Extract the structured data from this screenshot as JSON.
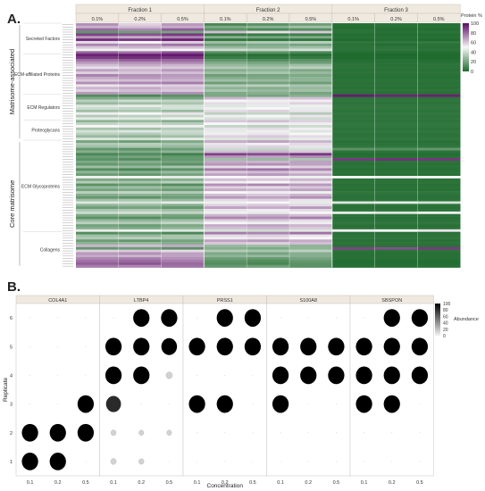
{
  "panel_labels": [
    "A.",
    "B."
  ],
  "chart_data": [
    {
      "type": "heatmap",
      "panel": "A.",
      "fractions": [
        "Fraction 1",
        "Fraction 2",
        "Fraction 3"
      ],
      "columns": [
        "0.1%",
        "0.2%",
        "0.5%",
        "0.1%",
        "0.2%",
        "0.5%",
        "0.1%",
        "0.2%",
        "0.5%"
      ],
      "outer_groups": [
        "Matrisome-associated",
        "Core matrisome"
      ],
      "category_labels": [
        "Secreted Factors",
        "ECM-affiliated Proteins",
        "ECM Regulators",
        "Proteoglycans",
        "ECM Glycoproteins",
        "Collagens"
      ],
      "row_count": 96,
      "colorbar": {
        "title": "Protein %",
        "ticks": [
          100,
          80,
          60,
          40,
          20,
          0
        ],
        "range": [
          0,
          100
        ],
        "colors": [
          "#1f6b2e",
          "#f7f7f7",
          "#5a0a64"
        ]
      },
      "values": [
        [
          72,
          58,
          70,
          10,
          14,
          18,
          2,
          3,
          2
        ],
        [
          65,
          62,
          66,
          22,
          25,
          30,
          1,
          2,
          2
        ],
        [
          80,
          74,
          83,
          14,
          10,
          12,
          2,
          1,
          1
        ],
        [
          15,
          18,
          20,
          62,
          55,
          60,
          3,
          2,
          3
        ],
        [
          88,
          85,
          90,
          5,
          6,
          7,
          1,
          1,
          1
        ],
        [
          70,
          66,
          74,
          24,
          20,
          22,
          2,
          2,
          2
        ],
        [
          92,
          90,
          95,
          4,
          4,
          4,
          0,
          1,
          0
        ],
        [
          55,
          50,
          58,
          30,
          34,
          36,
          4,
          4,
          5
        ],
        [
          74,
          70,
          78,
          18,
          22,
          20,
          2,
          1,
          2
        ],
        [
          60,
          64,
          62,
          28,
          26,
          30,
          3,
          3,
          2
        ],
        [
          48,
          52,
          50,
          40,
          38,
          42,
          3,
          4,
          3
        ],
        [
          82,
          78,
          85,
          12,
          14,
          10,
          1,
          1,
          1
        ],
        [
          95,
          96,
          97,
          3,
          2,
          2,
          0,
          0,
          0
        ],
        [
          90,
          93,
          92,
          6,
          4,
          5,
          0,
          0,
          0
        ],
        [
          78,
          82,
          80,
          15,
          12,
          14,
          1,
          2,
          1
        ],
        [
          70,
          72,
          74,
          22,
          20,
          18,
          2,
          2,
          2
        ],
        [
          62,
          66,
          64,
          28,
          26,
          30,
          3,
          2,
          3
        ],
        [
          55,
          58,
          60,
          34,
          32,
          36,
          3,
          3,
          3
        ],
        [
          68,
          64,
          70,
          24,
          26,
          22,
          2,
          2,
          2
        ],
        [
          58,
          60,
          62,
          30,
          32,
          28,
          3,
          3,
          3
        ],
        [
          75,
          72,
          70,
          18,
          20,
          22,
          2,
          2,
          2
        ],
        [
          66,
          70,
          68,
          24,
          22,
          26,
          2,
          2,
          2
        ],
        [
          60,
          62,
          64,
          30,
          28,
          26,
          3,
          3,
          3
        ],
        [
          72,
          74,
          76,
          18,
          20,
          18,
          2,
          2,
          2
        ],
        [
          54,
          56,
          58,
          34,
          36,
          32,
          3,
          3,
          3
        ],
        [
          64,
          66,
          62,
          26,
          24,
          28,
          2,
          2,
          2
        ],
        [
          58,
          62,
          60,
          32,
          28,
          30,
          3,
          3,
          3
        ],
        [
          70,
          68,
          72,
          22,
          24,
          20,
          2,
          2,
          2
        ],
        [
          12,
          10,
          14,
          22,
          20,
          24,
          96,
          94,
          95
        ],
        [
          22,
          24,
          20,
          64,
          60,
          62,
          3,
          3,
          3
        ],
        [
          36,
          40,
          38,
          50,
          48,
          52,
          4,
          4,
          4
        ],
        [
          28,
          30,
          32,
          56,
          54,
          58,
          3,
          3,
          3
        ],
        [
          44,
          46,
          42,
          44,
          46,
          48,
          4,
          4,
          4
        ],
        [
          40,
          38,
          42,
          48,
          50,
          46,
          4,
          4,
          4
        ],
        [
          30,
          32,
          28,
          56,
          58,
          54,
          3,
          3,
          3
        ],
        [
          52,
          50,
          54,
          36,
          38,
          34,
          4,
          4,
          4
        ],
        [
          34,
          36,
          38,
          52,
          50,
          54,
          3,
          3,
          3
        ],
        [
          46,
          44,
          48,
          42,
          44,
          40,
          4,
          4,
          4
        ],
        [
          26,
          28,
          24,
          60,
          62,
          58,
          3,
          3,
          3
        ],
        [
          38,
          40,
          36,
          50,
          48,
          52,
          4,
          4,
          4
        ],
        [
          50,
          52,
          48,
          38,
          36,
          40,
          4,
          4,
          4
        ],
        [
          32,
          30,
          34,
          54,
          56,
          52,
          3,
          3,
          3
        ],
        [
          42,
          44,
          40,
          46,
          48,
          44,
          4,
          4,
          4
        ],
        [
          36,
          34,
          38,
          52,
          54,
          50,
          3,
          3,
          3
        ],
        [
          28,
          26,
          30,
          58,
          60,
          56,
          3,
          3,
          3
        ],
        [
          44,
          42,
          46,
          44,
          42,
          46,
          4,
          4,
          4
        ],
        [
          20,
          18,
          22,
          66,
          68,
          64,
          2,
          2,
          2
        ],
        [
          34,
          36,
          32,
          54,
          52,
          56,
          3,
          3,
          3
        ],
        [
          30,
          32,
          28,
          56,
          58,
          54,
          4,
          4,
          4
        ],
        [
          16,
          14,
          18,
          40,
          38,
          42,
          14,
          12,
          16
        ],
        [
          24,
          22,
          26,
          62,
          64,
          60,
          3,
          3,
          3
        ],
        [
          10,
          12,
          8,
          88,
          86,
          90,
          1,
          1,
          1
        ],
        [
          18,
          20,
          16,
          70,
          68,
          72,
          2,
          2,
          2
        ],
        [
          14,
          12,
          16,
          30,
          28,
          32,
          90,
          92,
          91
        ],
        [
          22,
          24,
          20,
          66,
          64,
          68,
          3,
          3,
          3
        ],
        [
          16,
          18,
          14,
          70,
          72,
          68,
          2,
          2,
          2
        ],
        [
          30,
          28,
          32,
          56,
          54,
          58,
          3,
          3,
          3
        ],
        [
          12,
          10,
          14,
          76,
          78,
          74,
          2,
          2,
          2
        ],
        [
          26,
          24,
          28,
          60,
          62,
          58,
          3,
          3,
          3
        ],
        [
          18,
          16,
          20,
          68,
          70,
          66,
          2,
          2,
          2
        ],
        [
          48,
          50,
          46,
          50,
          52,
          48,
          50,
          52,
          50
        ],
        [
          22,
          20,
          24,
          62,
          60,
          64,
          3,
          3,
          3
        ],
        [
          34,
          32,
          36,
          52,
          50,
          54,
          3,
          3,
          3
        ],
        [
          14,
          16,
          12,
          72,
          74,
          70,
          2,
          2,
          2
        ],
        [
          28,
          30,
          26,
          58,
          56,
          60,
          3,
          3,
          3
        ],
        [
          20,
          22,
          18,
          66,
          64,
          68,
          2,
          2,
          2
        ],
        [
          36,
          38,
          34,
          50,
          52,
          48,
          4,
          4,
          4
        ],
        [
          24,
          26,
          22,
          62,
          60,
          64,
          3,
          3,
          3
        ],
        [
          16,
          14,
          18,
          70,
          68,
          72,
          2,
          2,
          2
        ],
        [
          30,
          32,
          28,
          56,
          58,
          54,
          3,
          3,
          3
        ],
        [
          44,
          42,
          46,
          48,
          50,
          46,
          44,
          46,
          42
        ],
        [
          26,
          28,
          24,
          58,
          60,
          56,
          3,
          3,
          3
        ],
        [
          18,
          20,
          16,
          68,
          66,
          70,
          2,
          2,
          2
        ],
        [
          32,
          34,
          30,
          54,
          52,
          56,
          3,
          3,
          3
        ],
        [
          40,
          42,
          38,
          48,
          46,
          50,
          46,
          44,
          48
        ],
        [
          22,
          24,
          20,
          64,
          66,
          62,
          3,
          3,
          3
        ],
        [
          14,
          12,
          16,
          74,
          72,
          76,
          2,
          2,
          2
        ],
        [
          28,
          26,
          30,
          58,
          60,
          56,
          3,
          3,
          3
        ],
        [
          36,
          34,
          38,
          50,
          48,
          52,
          4,
          4,
          4
        ],
        [
          20,
          18,
          22,
          66,
          68,
          64,
          2,
          2,
          2
        ],
        [
          24,
          22,
          26,
          62,
          64,
          60,
          3,
          3,
          3
        ],
        [
          46,
          48,
          44,
          42,
          40,
          44,
          52,
          50,
          54
        ],
        [
          12,
          14,
          10,
          76,
          74,
          78,
          2,
          2,
          2
        ],
        [
          30,
          28,
          32,
          56,
          58,
          54,
          3,
          3,
          3
        ],
        [
          34,
          36,
          32,
          52,
          54,
          50,
          4,
          4,
          4
        ],
        [
          18,
          16,
          20,
          68,
          70,
          66,
          2,
          2,
          2
        ],
        [
          26,
          28,
          24,
          60,
          58,
          62,
          3,
          3,
          3
        ],
        [
          64,
          62,
          66,
          28,
          30,
          26,
          2,
          2,
          2
        ],
        [
          16,
          18,
          14,
          24,
          22,
          26,
          88,
          86,
          90
        ],
        [
          58,
          60,
          56,
          34,
          32,
          36,
          3,
          3,
          3
        ],
        [
          70,
          72,
          68,
          22,
          20,
          24,
          2,
          2,
          2
        ],
        [
          66,
          64,
          68,
          26,
          28,
          24,
          2,
          2,
          2
        ],
        [
          74,
          76,
          72,
          18,
          16,
          20,
          2,
          2,
          2
        ],
        [
          78,
          80,
          76,
          14,
          12,
          16,
          1,
          1,
          1
        ],
        [
          82,
          84,
          80,
          12,
          10,
          14,
          1,
          1,
          1
        ],
        [
          76,
          74,
          78,
          16,
          18,
          14,
          2,
          2,
          2
        ]
      ],
      "group_rows": [
        [
          0,
          46
        ],
        [
          46,
          96
        ]
      ],
      "category_rows": [
        [
          0,
          12
        ],
        [
          12,
          28
        ],
        [
          28,
          38
        ],
        [
          38,
          46
        ],
        [
          46,
          82
        ],
        [
          82,
          96
        ]
      ]
    },
    {
      "type": "scatter",
      "panel": "B.",
      "facets": [
        "COL4A1",
        "LTBP4",
        "PRSS1",
        "S100A8",
        "SBSPON"
      ],
      "x_categories": [
        "0.1",
        "0.2",
        "0.5"
      ],
      "y_categories": [
        "1",
        "2",
        "3",
        "4",
        "5",
        "6"
      ],
      "xlabel": "Concentration",
      "ylabel": "Replicate",
      "size_legend": {
        "title": "Abundance",
        "ticks": [
          100,
          80,
          60,
          40,
          20,
          0
        ],
        "range": [
          0,
          100
        ]
      },
      "values": [
        [
          [
            95,
            95,
            0
          ],
          [
            95,
            95,
            95
          ],
          [
            0,
            0,
            95
          ],
          [
            0,
            0,
            0
          ],
          [
            0,
            0,
            0
          ],
          [
            0,
            0,
            0
          ]
        ],
        [
          [
            15,
            12,
            0
          ],
          [
            12,
            10,
            10
          ],
          [
            85,
            0,
            0
          ],
          [
            95,
            95,
            20
          ],
          [
            95,
            95,
            90
          ],
          [
            0,
            95,
            95
          ]
        ],
        [
          [
            0,
            0,
            0
          ],
          [
            0,
            0,
            0
          ],
          [
            95,
            95,
            0
          ],
          [
            0,
            0,
            0
          ],
          [
            95,
            95,
            95
          ],
          [
            0,
            95,
            95
          ]
        ],
        [
          [
            0,
            0,
            0
          ],
          [
            0,
            0,
            0
          ],
          [
            95,
            0,
            0
          ],
          [
            95,
            95,
            95
          ],
          [
            95,
            95,
            95
          ],
          [
            0,
            0,
            0
          ]
        ],
        [
          [
            0,
            0,
            0
          ],
          [
            0,
            0,
            0
          ],
          [
            95,
            95,
            0
          ],
          [
            95,
            95,
            95
          ],
          [
            95,
            95,
            95
          ],
          [
            0,
            95,
            95
          ]
        ]
      ]
    }
  ]
}
